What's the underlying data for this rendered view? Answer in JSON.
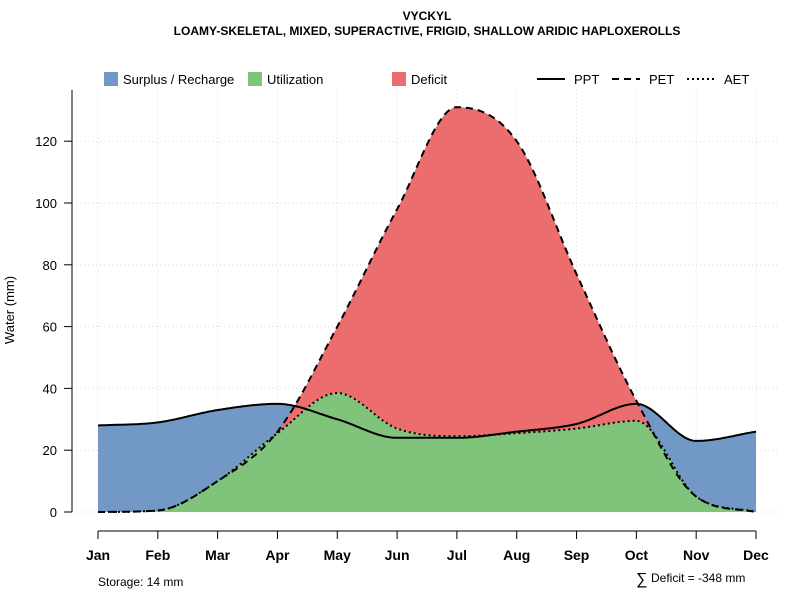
{
  "chart_data": {
    "type": "area",
    "title": "VYCKYL",
    "subtitle": "LOAMY-SKELETAL, MIXED, SUPERACTIVE, FRIGID, SHALLOW ARIDIC HAPLOXEROLLS",
    "xlabel": "",
    "ylabel": "Water (mm)",
    "ylim": [
      0,
      135
    ],
    "yticks": [
      0,
      20,
      40,
      60,
      80,
      100,
      120
    ],
    "grid": true,
    "categories": [
      "Jan",
      "Feb",
      "Mar",
      "Apr",
      "May",
      "Jun",
      "Jul",
      "Aug",
      "Sep",
      "Oct",
      "Nov",
      "Dec"
    ],
    "series": [
      {
        "name": "PPT",
        "style": "solid",
        "values": [
          28,
          29,
          33,
          35,
          30,
          24,
          24,
          26,
          28.5,
          35,
          23,
          26
        ]
      },
      {
        "name": "PET",
        "style": "dashed",
        "values": [
          0,
          0.5,
          10,
          26,
          60,
          98,
          131,
          120,
          77,
          36,
          5,
          0
        ]
      },
      {
        "name": "AET",
        "style": "dotted",
        "values": [
          0,
          0.5,
          10,
          25.5,
          38.5,
          27,
          24.5,
          25.5,
          27,
          29.5,
          5,
          0
        ]
      }
    ],
    "areas": [
      {
        "name": "Surplus / Recharge",
        "color": "#7299c6"
      },
      {
        "name": "Utilization",
        "color": "#80c47c"
      },
      {
        "name": "Deficit",
        "color": "#eb6d6d"
      }
    ],
    "legend_position": "top"
  },
  "notes": {
    "storage": "Storage: 14 mm",
    "deficit_symbol": "∑",
    "deficit": "Deficit = -348 mm"
  }
}
